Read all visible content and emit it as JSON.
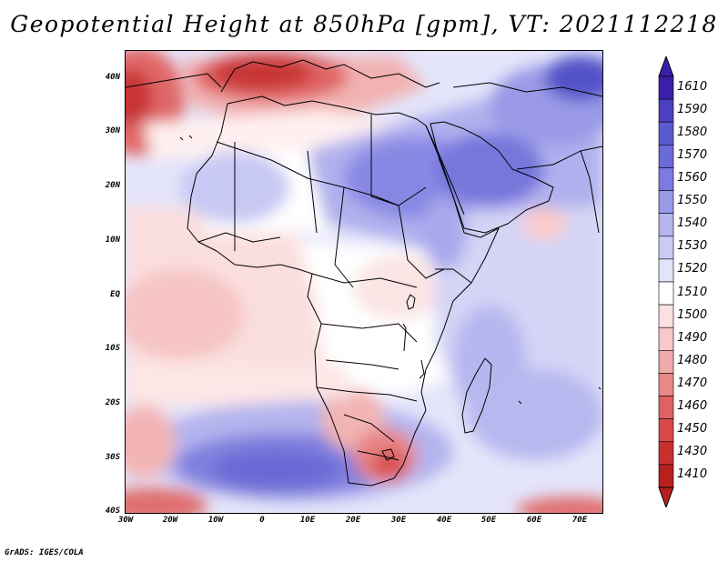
{
  "title": "Geopotential Height at 850hPa [gpm], VT: 2021112218",
  "credit": "GrADS: IGES/COLA",
  "map": {
    "lat_labels": [
      "40N",
      "30N",
      "20N",
      "10N",
      "EQ",
      "10S",
      "20S",
      "30S",
      "40S"
    ],
    "lon_labels": [
      "30W",
      "20W",
      "10W",
      "0",
      "10E",
      "20E",
      "30E",
      "40E",
      "50E",
      "60E",
      "70E"
    ]
  },
  "colorbar": {
    "labels": [
      "1610",
      "1590",
      "1580",
      "1570",
      "1560",
      "1550",
      "1540",
      "1530",
      "1520",
      "1510",
      "1500",
      "1490",
      "1480",
      "1470",
      "1460",
      "1450",
      "1430",
      "1410"
    ],
    "colors": [
      "#3a20a8",
      "#4a40c0",
      "#5a5ad0",
      "#6a6ad8",
      "#7a7ae0",
      "#9a9ae8",
      "#b4b4ee",
      "#cacaf4",
      "#e2e2fa",
      "#ffffff",
      "#fbe0e0",
      "#f6c8c8",
      "#f0aaaa",
      "#e88888",
      "#e06060",
      "#d84848",
      "#c83030",
      "#b82020"
    ]
  }
}
